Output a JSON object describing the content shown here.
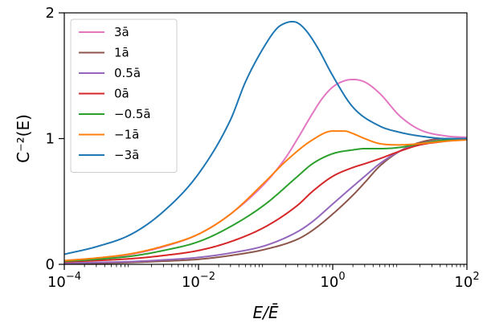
{
  "chart_data": {
    "type": "line",
    "xscale": "log",
    "xlim": [
      0.0001,
      100
    ],
    "ylim": [
      0,
      2
    ],
    "xlabel": "E/Ē",
    "ylabel": "C⁻²(E)",
    "grid": false,
    "legend_position": "top-left",
    "xticks": [
      {
        "value": 0.0001,
        "base": "10",
        "exp": "−4"
      },
      {
        "value": 0.01,
        "base": "10",
        "exp": "−2"
      },
      {
        "value": 1,
        "base": "10",
        "exp": "0"
      },
      {
        "value": 100,
        "base": "10",
        "exp": "2"
      }
    ],
    "yticks": [
      {
        "value": 0,
        "label": "0"
      },
      {
        "value": 1,
        "label": "1"
      },
      {
        "value": 2,
        "label": "2"
      }
    ],
    "series": [
      {
        "name": "3ā",
        "color": "#e377c2",
        "x": [
          0.0001,
          0.0003,
          0.001,
          0.003,
          0.01,
          0.03,
          0.1,
          0.2,
          0.3,
          0.5,
          0.7,
          1,
          1.5,
          2,
          3,
          5,
          10,
          20,
          50,
          100
        ],
        "y": [
          0.02,
          0.04,
          0.08,
          0.14,
          0.24,
          0.4,
          0.65,
          0.85,
          1.0,
          1.2,
          1.32,
          1.41,
          1.46,
          1.47,
          1.45,
          1.36,
          1.18,
          1.07,
          1.02,
          1.01
        ]
      },
      {
        "name": "1ā",
        "color": "#8c564b",
        "x": [
          0.0001,
          0.0003,
          0.001,
          0.003,
          0.01,
          0.03,
          0.1,
          0.3,
          0.5,
          1,
          2,
          3,
          5,
          10,
          20,
          50,
          100
        ],
        "y": [
          0.005,
          0.008,
          0.015,
          0.025,
          0.04,
          0.07,
          0.12,
          0.2,
          0.27,
          0.4,
          0.55,
          0.65,
          0.78,
          0.9,
          0.97,
          1.0,
          1.0
        ]
      },
      {
        "name": "0.5ā",
        "color": "#9467bd",
        "x": [
          0.0001,
          0.0003,
          0.001,
          0.003,
          0.01,
          0.03,
          0.1,
          0.3,
          0.5,
          1,
          2,
          3,
          5,
          10,
          20,
          50,
          100
        ],
        "y": [
          0.01,
          0.015,
          0.022,
          0.035,
          0.055,
          0.09,
          0.15,
          0.26,
          0.34,
          0.48,
          0.62,
          0.7,
          0.8,
          0.9,
          0.96,
          0.99,
          1.0
        ]
      },
      {
        "name": "0ā",
        "color": "#d62728",
        "x": [
          0.0001,
          0.0003,
          0.001,
          0.003,
          0.01,
          0.03,
          0.1,
          0.3,
          0.5,
          1,
          2,
          3,
          5,
          10,
          20,
          50,
          100
        ],
        "y": [
          0.02,
          0.03,
          0.045,
          0.07,
          0.11,
          0.18,
          0.3,
          0.47,
          0.58,
          0.7,
          0.77,
          0.8,
          0.84,
          0.9,
          0.95,
          0.98,
          1.0
        ]
      },
      {
        "name": "−0.5ā",
        "color": "#2ca02c",
        "x": [
          0.0001,
          0.0003,
          0.001,
          0.003,
          0.01,
          0.03,
          0.1,
          0.3,
          0.5,
          1,
          2,
          3,
          5,
          10,
          20,
          50,
          100
        ],
        "y": [
          0.025,
          0.04,
          0.065,
          0.11,
          0.18,
          0.3,
          0.48,
          0.7,
          0.8,
          0.88,
          0.91,
          0.92,
          0.92,
          0.93,
          0.96,
          0.99,
          1.0
        ]
      },
      {
        "name": "−1ā",
        "color": "#ff7f0e",
        "x": [
          0.0001,
          0.0003,
          0.001,
          0.003,
          0.01,
          0.03,
          0.1,
          0.2,
          0.5,
          1,
          1.5,
          2,
          3,
          5,
          10,
          20,
          50,
          100
        ],
        "y": [
          0.03,
          0.05,
          0.085,
          0.145,
          0.24,
          0.4,
          0.66,
          0.82,
          0.99,
          1.06,
          1.06,
          1.04,
          1.0,
          0.96,
          0.95,
          0.96,
          0.98,
          0.99
        ]
      },
      {
        "name": "−3ā",
        "color": "#1f77b4",
        "x": [
          0.0001,
          0.0003,
          0.001,
          0.003,
          0.01,
          0.03,
          0.05,
          0.1,
          0.15,
          0.2,
          0.25,
          0.3,
          0.4,
          0.6,
          1,
          2,
          5,
          10,
          20,
          50,
          100
        ],
        "y": [
          0.08,
          0.14,
          0.24,
          0.42,
          0.72,
          1.15,
          1.45,
          1.75,
          1.88,
          1.92,
          1.93,
          1.92,
          1.86,
          1.72,
          1.5,
          1.25,
          1.1,
          1.05,
          1.02,
          1.0,
          1.0
        ]
      }
    ]
  }
}
